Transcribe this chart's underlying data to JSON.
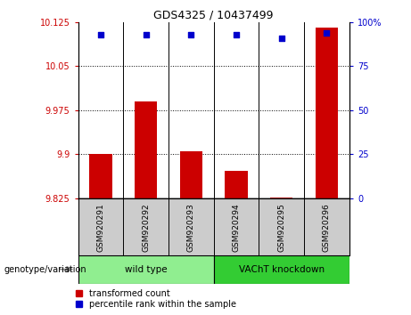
{
  "title": "GDS4325 / 10437499",
  "samples": [
    "GSM920291",
    "GSM920292",
    "GSM920293",
    "GSM920294",
    "GSM920295",
    "GSM920296"
  ],
  "transformed_counts": [
    9.9,
    9.99,
    9.905,
    9.872,
    9.826,
    10.115
  ],
  "percentile_ranks": [
    93,
    93,
    93,
    93,
    91,
    94
  ],
  "ylim_left": [
    9.825,
    10.125
  ],
  "ylim_right": [
    0,
    100
  ],
  "yticks_left": [
    9.825,
    9.9,
    9.975,
    10.05,
    10.125
  ],
  "ytick_labels_left": [
    "9.825",
    "9.9",
    "9.975",
    "10.05",
    "10.125"
  ],
  "yticks_right": [
    0,
    25,
    50,
    75,
    100
  ],
  "ytick_labels_right": [
    "0",
    "25",
    "50",
    "75",
    "100%"
  ],
  "hlines": [
    9.9,
    9.975,
    10.05
  ],
  "bar_color": "#cc0000",
  "dot_color": "#0000cc",
  "groups": [
    {
      "label": "wild type",
      "indices": [
        0,
        1,
        2
      ],
      "color": "#90ee90"
    },
    {
      "label": "VAChT knockdown",
      "indices": [
        3,
        4,
        5
      ],
      "color": "#33cc33"
    }
  ],
  "group_label": "genotype/variation",
  "legend_items": [
    {
      "label": "transformed count",
      "color": "#cc0000"
    },
    {
      "label": "percentile rank within the sample",
      "color": "#0000cc"
    }
  ],
  "plot_bg_color": "#ffffff",
  "tick_color_left": "#cc0000",
  "tick_color_right": "#0000cc",
  "sample_box_color": "#cccccc",
  "bar_width": 0.5,
  "title_fontsize": 9,
  "tick_fontsize": 7,
  "sample_fontsize": 6.5,
  "legend_fontsize": 7,
  "group_fontsize": 7.5
}
